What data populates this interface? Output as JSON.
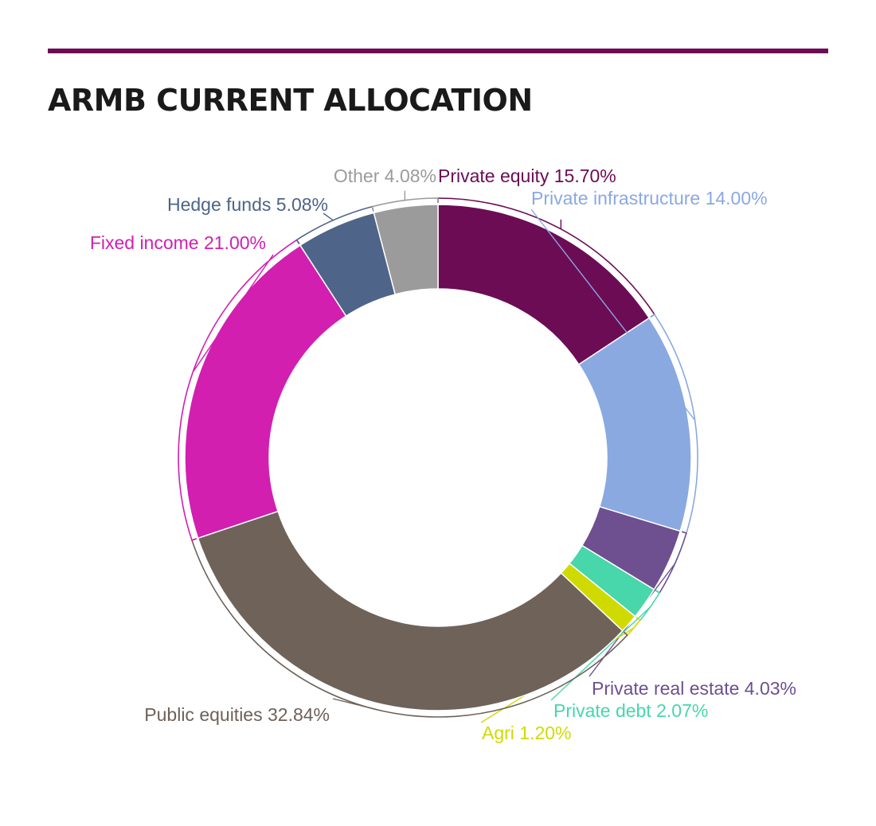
{
  "chart_data": {
    "type": "pie",
    "variant": "donut",
    "title": "ARMB CURRENT ALLOCATION",
    "legend": "none (labels outside slices)",
    "unit": "%",
    "slices": [
      {
        "name": "Private equity",
        "value": 15.7,
        "label": "Private equity 15.70%",
        "color": "#6c0c55"
      },
      {
        "name": "Private infrastructure",
        "value": 14.0,
        "label": "Private infrastructure 14.00%",
        "color": "#8aa9e1"
      },
      {
        "name": "Private real estate",
        "value": 4.03,
        "label": "Private real estate 4.03%",
        "color": "#6e4f8f"
      },
      {
        "name": "Private debt",
        "value": 2.07,
        "label": "Private debt 2.07%",
        "color": "#48d6ab"
      },
      {
        "name": "Agri",
        "value": 1.2,
        "label": "Agri 1.20%",
        "color": "#cfdb00"
      },
      {
        "name": "Public equities",
        "value": 32.84,
        "label": "Public equities 32.84%",
        "color": "#6e6259"
      },
      {
        "name": "Fixed income",
        "value": 21.0,
        "label": "Fixed income 21.00%",
        "color": "#d21fb0"
      },
      {
        "name": "Hedge funds",
        "value": 5.08,
        "label": "Hedge funds 5.08%",
        "color": "#4e6488"
      },
      {
        "name": "Other",
        "value": 4.08,
        "label": "Other 4.08%",
        "color": "#9b9b9b"
      }
    ]
  },
  "colors": {
    "accent_rule": "#6c0c55",
    "title_text": "#1a1a1a"
  }
}
